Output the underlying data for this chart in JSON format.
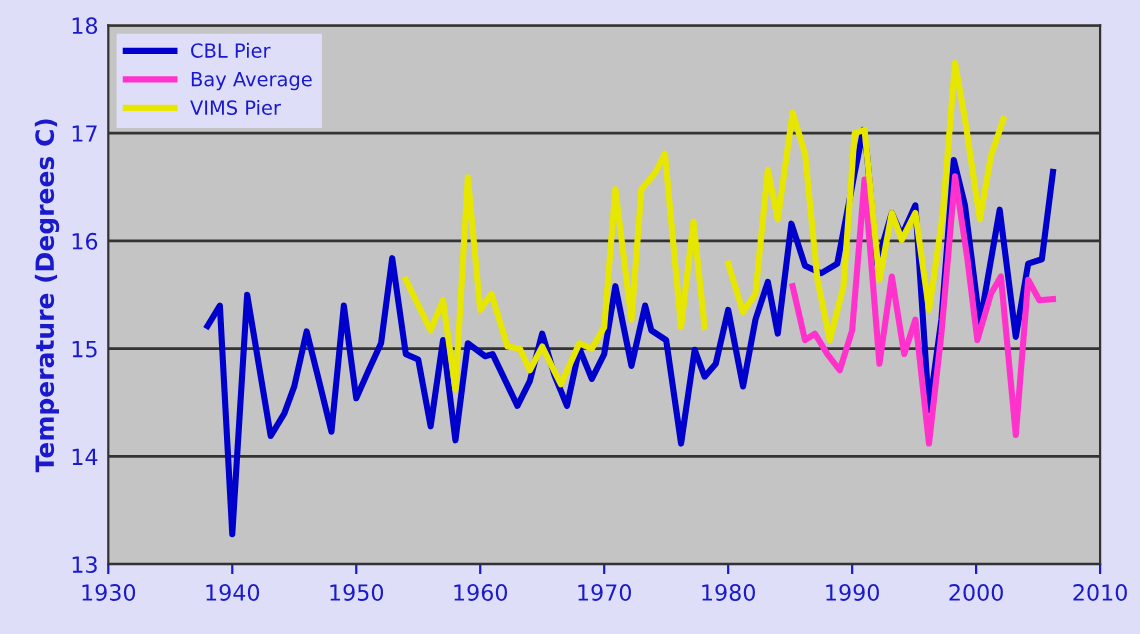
{
  "chart_data": {
    "type": "line",
    "ylabel": "Temperature (Degrees C)",
    "xlim": [
      1930,
      2010
    ],
    "xticks": [
      1930,
      1940,
      1950,
      1960,
      1970,
      1980,
      1990,
      2000,
      2010
    ],
    "ylim": [
      13,
      18
    ],
    "yticks": [
      13,
      14,
      15,
      16,
      17,
      18
    ],
    "grid": "y",
    "legend": "top left",
    "marker": "none",
    "line_style": "solid",
    "series": [
      {
        "name": "CBL Pier",
        "color": "#0000cc",
        "x": [
          1938.0,
          1939.0,
          1940.0,
          1941.2,
          1943.1,
          1944.2,
          1945.0,
          1946.0,
          1947.0,
          1948.0,
          1949.0,
          1950.0,
          1951.0,
          1952.0,
          1952.9,
          1954.0,
          1955.0,
          1956.0,
          1957.0,
          1958.0,
          1959.0,
          1960.4,
          1961.0,
          1963.0,
          1964.0,
          1965.0,
          1966.0,
          1967.0,
          1968.0,
          1969.0,
          1970.0,
          1970.9,
          1972.2,
          1973.3,
          1973.8,
          1975.0,
          1976.2,
          1977.3,
          1978.1,
          1979.0,
          1980.0,
          1981.2,
          1982.2,
          1983.2,
          1984.0,
          1985.1,
          1986.2,
          1987.5,
          1988.8,
          1990.2,
          1990.9,
          1991.2,
          1992.0,
          1993.2,
          1994.0,
          1995.1,
          1996.2,
          1997.2,
          1998.2,
          1999.1,
          2000.3,
          2001.9,
          2003.2,
          2004.2,
          2005.3,
          2006.2
        ],
        "values": [
          15.21,
          15.4,
          13.28,
          15.5,
          14.19,
          14.4,
          14.65,
          15.16,
          14.7,
          14.23,
          15.4,
          14.54,
          14.8,
          15.05,
          15.84,
          14.95,
          14.9,
          14.28,
          15.08,
          14.15,
          15.05,
          14.93,
          14.95,
          14.47,
          14.7,
          15.14,
          14.75,
          14.47,
          15.0,
          14.72,
          14.95,
          15.58,
          14.84,
          15.4,
          15.17,
          15.08,
          14.12,
          14.99,
          14.74,
          14.86,
          15.36,
          14.65,
          15.27,
          15.62,
          15.14,
          16.16,
          15.77,
          15.7,
          15.79,
          16.63,
          17.03,
          16.8,
          15.79,
          16.26,
          16.05,
          16.33,
          14.43,
          15.27,
          16.75,
          16.33,
          15.23,
          16.29,
          15.11,
          15.79,
          15.83,
          16.64
        ]
      },
      {
        "name": "Bay Average",
        "color": "#ff33cc",
        "x": [
          1985.2,
          1986.2,
          1987.0,
          1988.0,
          1989.0,
          1990.0,
          1991.0,
          1992.2,
          1993.2,
          1994.2,
          1995.1,
          1996.2,
          1997.2,
          1998.3,
          1999.3,
          2000.1,
          2001.2,
          2002.0,
          2003.2,
          2004.2,
          2005.1,
          2006.2
        ],
        "values": [
          15.58,
          15.08,
          15.14,
          14.95,
          14.8,
          15.17,
          16.57,
          14.86,
          15.67,
          14.95,
          15.27,
          14.12,
          15.14,
          16.6,
          15.83,
          15.08,
          15.51,
          15.67,
          14.2,
          15.64,
          15.45,
          15.46
        ]
      },
      {
        "name": "VIMS Pier",
        "color": "#e6e600",
        "x": [
          1954.0,
          1956.0,
          1957.0,
          1958.0,
          1959.0,
          1960.0,
          1960.9,
          1962.2,
          1963.2,
          1964.0,
          1965.0,
          1966.5,
          1968.0,
          1969.0,
          1970.0,
          1970.9,
          1972.2,
          1973.0,
          1974.1,
          1974.9,
          1976.2,
          1977.2,
          1978.1,
          1979.0,
          1980.0,
          1981.2,
          1982.2,
          1983.2,
          1984.0,
          1985.2,
          1986.2,
          1987.2,
          1988.2,
          1989.3,
          1990.2,
          1991.0,
          1992.2,
          1993.2,
          1994.0,
          1995.1,
          1996.2,
          1997.3,
          1998.3,
          1999.1,
          2000.3,
          2001.2,
          2002.2
        ],
        "values": [
          15.64,
          15.17,
          15.45,
          14.62,
          16.59,
          15.36,
          15.51,
          15.02,
          15.0,
          14.8,
          15.02,
          14.67,
          15.05,
          15.0,
          15.2,
          16.48,
          15.27,
          16.48,
          16.63,
          16.81,
          15.2,
          16.18,
          15.2,
          null,
          15.79,
          15.34,
          15.51,
          16.66,
          16.2,
          17.19,
          16.81,
          15.64,
          15.08,
          15.58,
          17.0,
          17.03,
          15.64,
          16.26,
          16.01,
          16.26,
          15.36,
          16.24,
          17.65,
          17.13,
          16.2,
          16.79,
          17.13
        ]
      }
    ]
  }
}
